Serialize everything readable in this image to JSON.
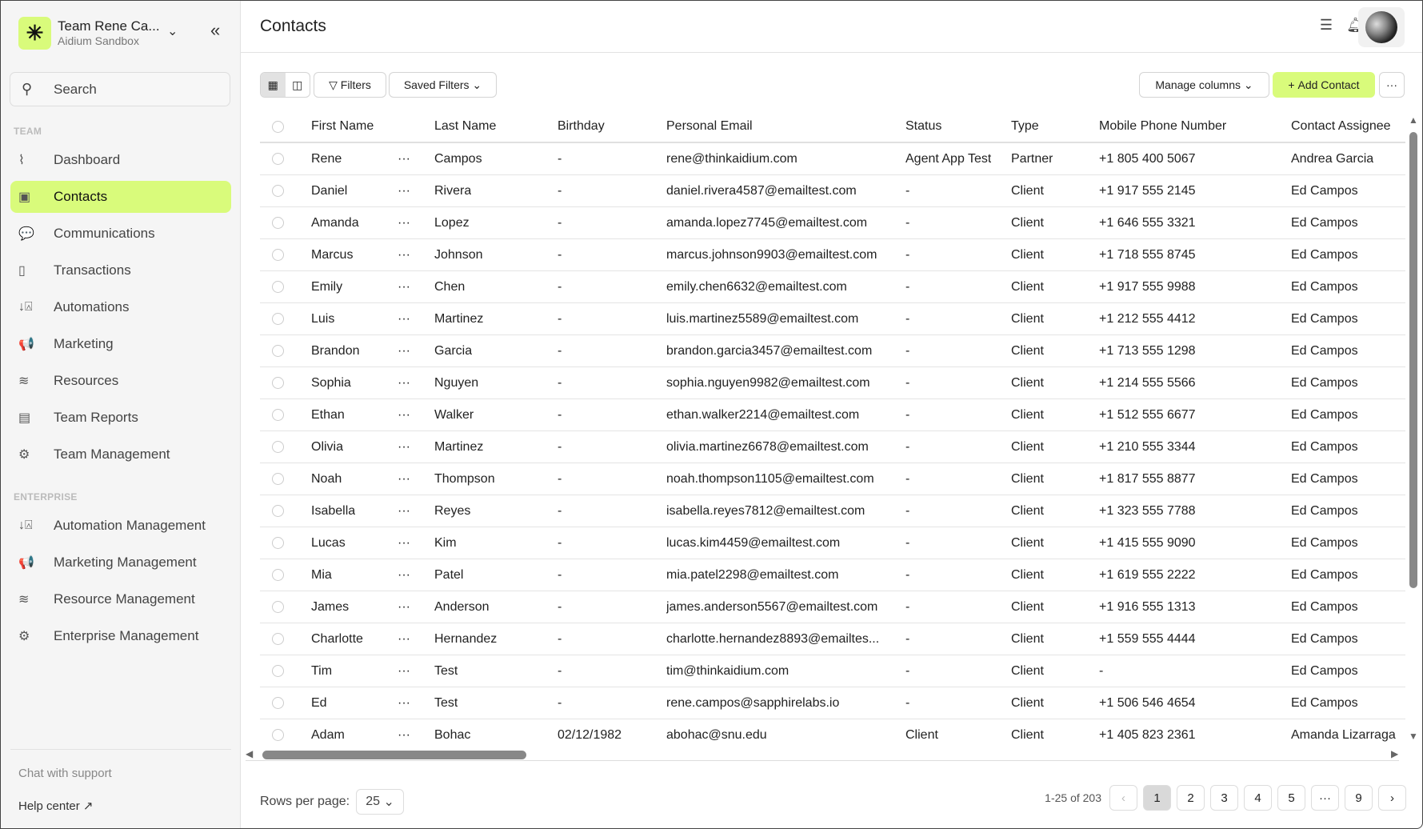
{
  "sidebar": {
    "team_name": "Team Rene Ca...",
    "team_sub": "Aidium Sandbox",
    "search_placeholder": "Search",
    "section_team": "TEAM",
    "section_enterprise": "ENTERPRISE",
    "team_items": [
      {
        "label": "Dashboard",
        "icon": "chart-line-icon",
        "glyph": "⌇"
      },
      {
        "label": "Contacts",
        "icon": "contact-book-icon",
        "glyph": "▣",
        "active": true
      },
      {
        "label": "Communications",
        "icon": "chat-bubbles-icon",
        "glyph": "💬"
      },
      {
        "label": "Transactions",
        "icon": "document-icon",
        "glyph": "▯"
      },
      {
        "label": "Automations",
        "icon": "sort-shapes-icon",
        "glyph": "↓⍓"
      },
      {
        "label": "Marketing",
        "icon": "megaphone-icon",
        "glyph": "📢"
      },
      {
        "label": "Resources",
        "icon": "layers-icon",
        "glyph": "≋"
      },
      {
        "label": "Team Reports",
        "icon": "report-icon",
        "glyph": "▤"
      },
      {
        "label": "Team Management",
        "icon": "gear-icon",
        "glyph": "⚙"
      }
    ],
    "enterprise_items": [
      {
        "label": "Automation Management",
        "icon": "sort-shapes-icon",
        "glyph": "↓⍓"
      },
      {
        "label": "Marketing Management",
        "icon": "megaphone-icon",
        "glyph": "📢"
      },
      {
        "label": "Resource Management",
        "icon": "layers-icon",
        "glyph": "≋"
      },
      {
        "label": "Enterprise Management",
        "icon": "gear-icon",
        "glyph": "⚙"
      }
    ],
    "chat_support": "Chat with support",
    "help_center": "Help center ↗"
  },
  "header": {
    "title": "Contacts"
  },
  "toolbar": {
    "filters": "Filters",
    "saved_filters": "Saved Filters",
    "manage_columns": "Manage columns",
    "add_contact": "Add Contact",
    "more": "···"
  },
  "accent": "#d9fb7b",
  "table": {
    "columns": [
      "First Name",
      "Last Name",
      "Birthday",
      "Personal Email",
      "Status",
      "Type",
      "Mobile Phone Number",
      "Contact Assignee"
    ],
    "rows": [
      [
        "Rene",
        "Campos",
        "-",
        "rene@thinkaidium.com",
        "Agent App Test",
        "Partner",
        "+1 805 400 5067",
        "Andrea Garcia"
      ],
      [
        "Daniel",
        "Rivera",
        "-",
        "daniel.rivera4587@emailtest.com",
        "-",
        "Client",
        "+1 917 555 2145",
        "Ed Campos"
      ],
      [
        "Amanda",
        "Lopez",
        "-",
        "amanda.lopez7745@emailtest.com",
        "-",
        "Client",
        "+1 646 555 3321",
        "Ed Campos"
      ],
      [
        "Marcus",
        "Johnson",
        "-",
        "marcus.johnson9903@emailtest.com",
        "-",
        "Client",
        "+1 718 555 8745",
        "Ed Campos"
      ],
      [
        "Emily",
        "Chen",
        "-",
        "emily.chen6632@emailtest.com",
        "-",
        "Client",
        "+1 917 555 9988",
        "Ed Campos"
      ],
      [
        "Luis",
        "Martinez",
        "-",
        "luis.martinez5589@emailtest.com",
        "-",
        "Client",
        "+1 212 555 4412",
        "Ed Campos"
      ],
      [
        "Brandon",
        "Garcia",
        "-",
        "brandon.garcia3457@emailtest.com",
        "-",
        "Client",
        "+1 713 555 1298",
        "Ed Campos"
      ],
      [
        "Sophia",
        "Nguyen",
        "-",
        "sophia.nguyen9982@emailtest.com",
        "-",
        "Client",
        "+1 214 555 5566",
        "Ed Campos"
      ],
      [
        "Ethan",
        "Walker",
        "-",
        "ethan.walker2214@emailtest.com",
        "-",
        "Client",
        "+1 512 555 6677",
        "Ed Campos"
      ],
      [
        "Olivia",
        "Martinez",
        "-",
        "olivia.martinez6678@emailtest.com",
        "-",
        "Client",
        "+1 210 555 3344",
        "Ed Campos"
      ],
      [
        "Noah",
        "Thompson",
        "-",
        "noah.thompson1105@emailtest.com",
        "-",
        "Client",
        "+1 817 555 8877",
        "Ed Campos"
      ],
      [
        "Isabella",
        "Reyes",
        "-",
        "isabella.reyes7812@emailtest.com",
        "-",
        "Client",
        "+1 323 555 7788",
        "Ed Campos"
      ],
      [
        "Lucas",
        "Kim",
        "-",
        "lucas.kim4459@emailtest.com",
        "-",
        "Client",
        "+1 415 555 9090",
        "Ed Campos"
      ],
      [
        "Mia",
        "Patel",
        "-",
        "mia.patel2298@emailtest.com",
        "-",
        "Client",
        "+1 619 555 2222",
        "Ed Campos"
      ],
      [
        "James",
        "Anderson",
        "-",
        "james.anderson5567@emailtest.com",
        "-",
        "Client",
        "+1 916 555 1313",
        "Ed Campos"
      ],
      [
        "Charlotte",
        "Hernandez",
        "-",
        "charlotte.hernandez8893@emailtes...",
        "-",
        "Client",
        "+1 559 555 4444",
        "Ed Campos"
      ],
      [
        "Tim",
        "Test",
        "-",
        "tim@thinkaidium.com",
        "-",
        "Client",
        "-",
        "Ed Campos"
      ],
      [
        "Ed",
        "Test",
        "-",
        "rene.campos@sapphirelabs.io",
        "-",
        "Client",
        "+1 506 546 4654",
        "Ed Campos"
      ],
      [
        "Adam",
        "Bohac",
        "02/12/1982",
        "abohac@snu.edu",
        "Client",
        "Client",
        "+1 405 823 2361",
        "Amanda Lizarraga"
      ]
    ],
    "row_menu": "···"
  },
  "footer": {
    "rows_per_page_label": "Rows per page:",
    "rows_per_page": "25",
    "range": "1-25 of 203",
    "pages": [
      "1",
      "2",
      "3",
      "4",
      "5",
      "···",
      "9"
    ],
    "current_page": "1",
    "prev": "‹",
    "next": "›"
  }
}
